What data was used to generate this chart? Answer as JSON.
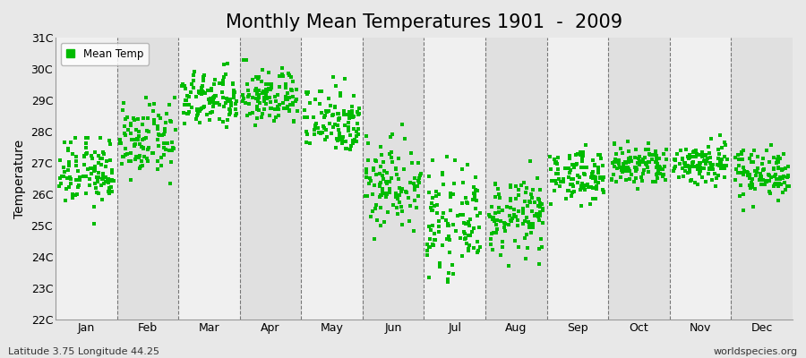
{
  "title": "Monthly Mean Temperatures 1901  -  2009",
  "ylabel": "Temperature",
  "xlabel": "",
  "ylim": [
    22,
    31
  ],
  "ytick_labels": [
    "22C",
    "23C",
    "24C",
    "25C",
    "26C",
    "27C",
    "28C",
    "29C",
    "30C",
    "31C"
  ],
  "ytick_values": [
    22,
    23,
    24,
    25,
    26,
    27,
    28,
    29,
    30,
    31
  ],
  "months": [
    "Jan",
    "Feb",
    "Mar",
    "Apr",
    "May",
    "Jun",
    "Jul",
    "Aug",
    "Sep",
    "Oct",
    "Nov",
    "Dec"
  ],
  "dot_color": "#00BB00",
  "bg_color_light": "#F0F0F0",
  "bg_color_dark": "#E0E0E0",
  "outer_bg": "#E8E8E8",
  "legend_label": "Mean Temp",
  "footer_left": "Latitude 3.75 Longitude 44.25",
  "footer_right": "worldspecies.org",
  "n_years": 109,
  "monthly_means": [
    26.7,
    27.7,
    29.0,
    29.1,
    28.4,
    26.4,
    25.1,
    25.3,
    26.6,
    26.9,
    27.0,
    26.7
  ],
  "monthly_stds": [
    0.55,
    0.55,
    0.45,
    0.45,
    0.55,
    0.75,
    0.75,
    0.6,
    0.4,
    0.35,
    0.35,
    0.4
  ],
  "monthly_mins": [
    24.9,
    24.9,
    27.8,
    27.8,
    26.6,
    22.5,
    22.5,
    23.5,
    25.6,
    25.8,
    25.7,
    25.5
  ],
  "monthly_maxs": [
    27.8,
    29.1,
    30.9,
    30.5,
    30.1,
    28.6,
    27.2,
    27.3,
    27.8,
    28.1,
    28.4,
    27.7
  ],
  "marker_size": 9,
  "title_fontsize": 15,
  "axis_fontsize": 10,
  "tick_fontsize": 9,
  "footer_fontsize": 8
}
